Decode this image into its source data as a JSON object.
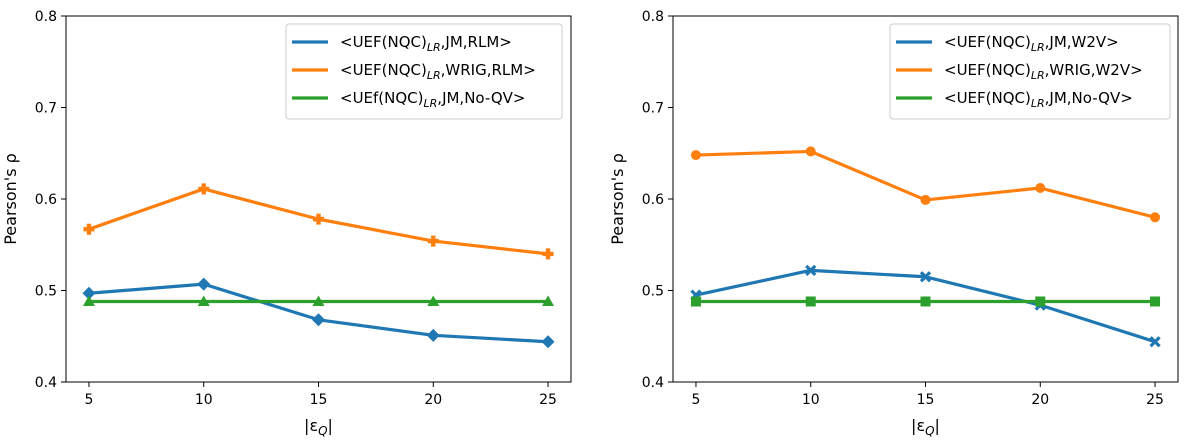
{
  "chart_data": [
    {
      "type": "line",
      "x": [
        5,
        10,
        15,
        20,
        25
      ],
      "xlabel": "|εQ|",
      "ylabel": "Pearson's ρ",
      "ylim": [
        0.4,
        0.8
      ],
      "yticks": [
        "0.4",
        "0.5",
        "0.6",
        "0.7",
        "0.8"
      ],
      "xticks": [
        "5",
        "10",
        "15",
        "20",
        "25"
      ],
      "grid": false,
      "legend_position": "top-right",
      "series": [
        {
          "name": "<UEF(NQC)LR,JM,RLM>",
          "name_main": "<UEF(NQC)",
          "name_sub": "LR",
          "name_rest": ",JM,RLM>",
          "color": "#1f77b4",
          "marker": "diamond",
          "values": [
            0.497,
            0.507,
            0.468,
            0.451,
            0.444
          ]
        },
        {
          "name": "<UEF(NQC)LR,WRIG,RLM>",
          "name_main": "<UEF(NQC)",
          "name_sub": "LR",
          "name_rest": ",WRIG,RLM>",
          "color": "#ff7f0e",
          "marker": "plus",
          "values": [
            0.567,
            0.611,
            0.578,
            0.554,
            0.54
          ]
        },
        {
          "name": "<UEf(NQC)LR,JM,No-QV>",
          "name_main": "<UEf(NQC)",
          "name_sub": "LR",
          "name_rest": ",JM,No-QV>",
          "color": "#2ca02c",
          "marker": "triangle",
          "values": [
            0.488,
            0.488,
            0.488,
            0.488,
            0.488
          ]
        }
      ]
    },
    {
      "type": "line",
      "x": [
        5,
        10,
        15,
        20,
        25
      ],
      "xlabel": "|εQ|",
      "ylabel": "Pearson's ρ",
      "ylim": [
        0.4,
        0.8
      ],
      "yticks": [
        "0.4",
        "0.5",
        "0.6",
        "0.7",
        "0.8"
      ],
      "xticks": [
        "5",
        "10",
        "15",
        "20",
        "25"
      ],
      "grid": false,
      "legend_position": "top-right",
      "series": [
        {
          "name": "<UEF(NQC)LR,JM,W2V>",
          "name_main": "<UEF(NQC)",
          "name_sub": "LR",
          "name_rest": ",JM,W2V>",
          "color": "#1f77b4",
          "marker": "x",
          "values": [
            0.495,
            0.522,
            0.515,
            0.484,
            0.444
          ]
        },
        {
          "name": "<UEF(NQC)LR,WRIG,W2V>",
          "name_main": "<UEF(NQC)",
          "name_sub": "LR",
          "name_rest": ",WRIG,W2V>",
          "color": "#ff7f0e",
          "marker": "circle",
          "values": [
            0.648,
            0.652,
            0.599,
            0.612,
            0.58
          ]
        },
        {
          "name": "<UEF(NQC)LR,JM,No-QV>",
          "name_main": "<UEF(NQC)",
          "name_sub": "LR",
          "name_rest": ",JM,No-QV>",
          "color": "#2ca02c",
          "marker": "square",
          "values": [
            0.488,
            0.488,
            0.488,
            0.488,
            0.488
          ]
        }
      ]
    }
  ]
}
